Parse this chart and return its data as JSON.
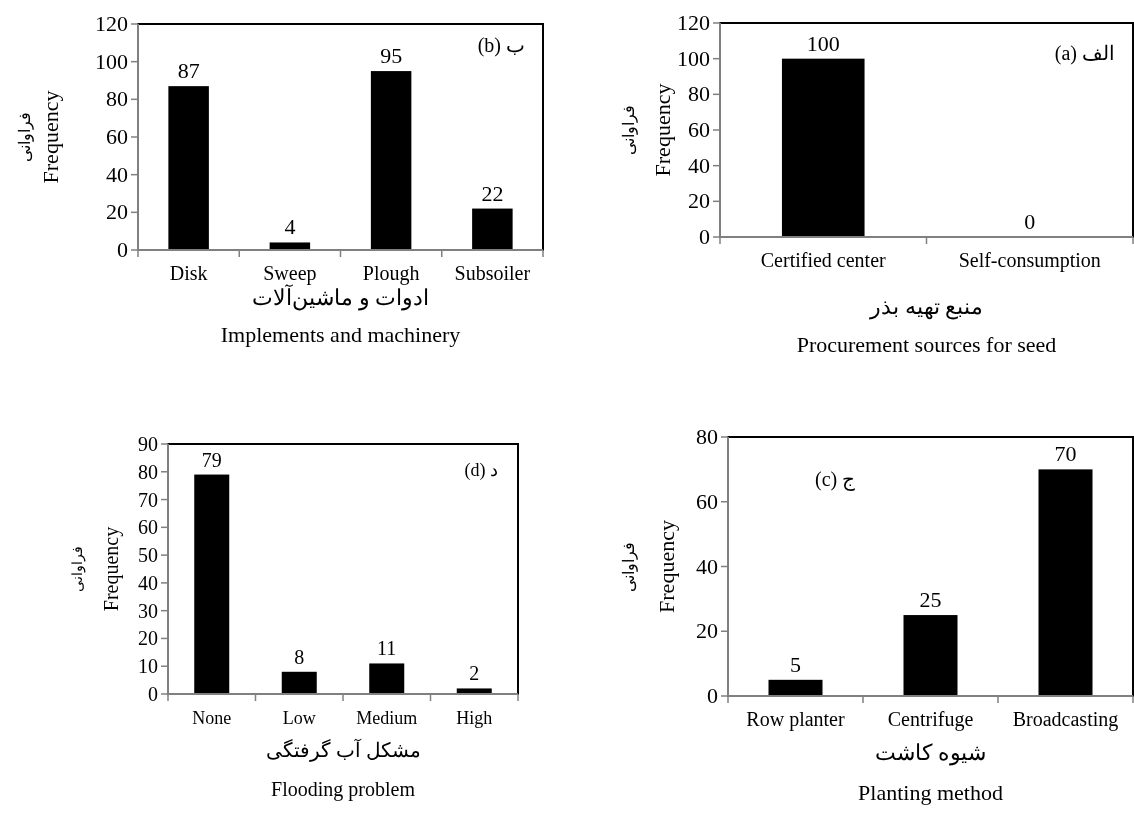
{
  "chart_data": [
    {
      "type": "bar",
      "categories": [
        "Disk",
        "Sweep",
        "Plough",
        "Subsoiler"
      ],
      "values": [
        87,
        4,
        95,
        22
      ],
      "color": "#000000",
      "ylim": [
        0,
        120
      ],
      "yticks": [
        0,
        20,
        40,
        60,
        80,
        100,
        120
      ],
      "ylabel": "فراوانی\nFrequency",
      "xlabel": "ادوات و ماشین‌آلات\nImplements and machinery",
      "annotations": [
        "ب (b)"
      ],
      "data_labels": true
    },
    {
      "type": "bar",
      "categories": [
        "Certified center",
        "Self-consumption"
      ],
      "values": [
        100,
        0
      ],
      "color": "#000000",
      "ylim": [
        0,
        120
      ],
      "yticks": [
        0,
        20,
        40,
        60,
        80,
        100,
        120
      ],
      "ylabel": "فراوانی\nFrequency",
      "xlabel": "منبع تهیه بذر\nProcurement sources for seed",
      "annotations": [
        "الف (a)"
      ],
      "data_labels": true
    },
    {
      "type": "bar",
      "categories": [
        "None",
        "Low",
        "Medium",
        "High"
      ],
      "values": [
        79,
        8,
        11,
        2
      ],
      "color": "#000000",
      "ylim": [
        0,
        90
      ],
      "yticks": [
        0,
        10,
        20,
        30,
        40,
        50,
        60,
        70,
        80,
        90
      ],
      "ylabel": "فراوانی\nFrequency",
      "xlabel": "مشکل آب گرفتگی\nFlooding problem",
      "annotations": [
        "د (d)"
      ],
      "data_labels": true
    },
    {
      "type": "bar",
      "categories": [
        "Row planter",
        "Centrifuge",
        "Broadcasting"
      ],
      "values": [
        5,
        25,
        70
      ],
      "color": "#000000",
      "ylim": [
        0,
        80
      ],
      "yticks": [
        0,
        20,
        40,
        60,
        80
      ],
      "ylabel": "فراوانی\nFrequency",
      "xlabel": "شیوه کاشت\nPlanting method",
      "annotations": [
        "ج (c)"
      ],
      "data_labels": true
    }
  ]
}
